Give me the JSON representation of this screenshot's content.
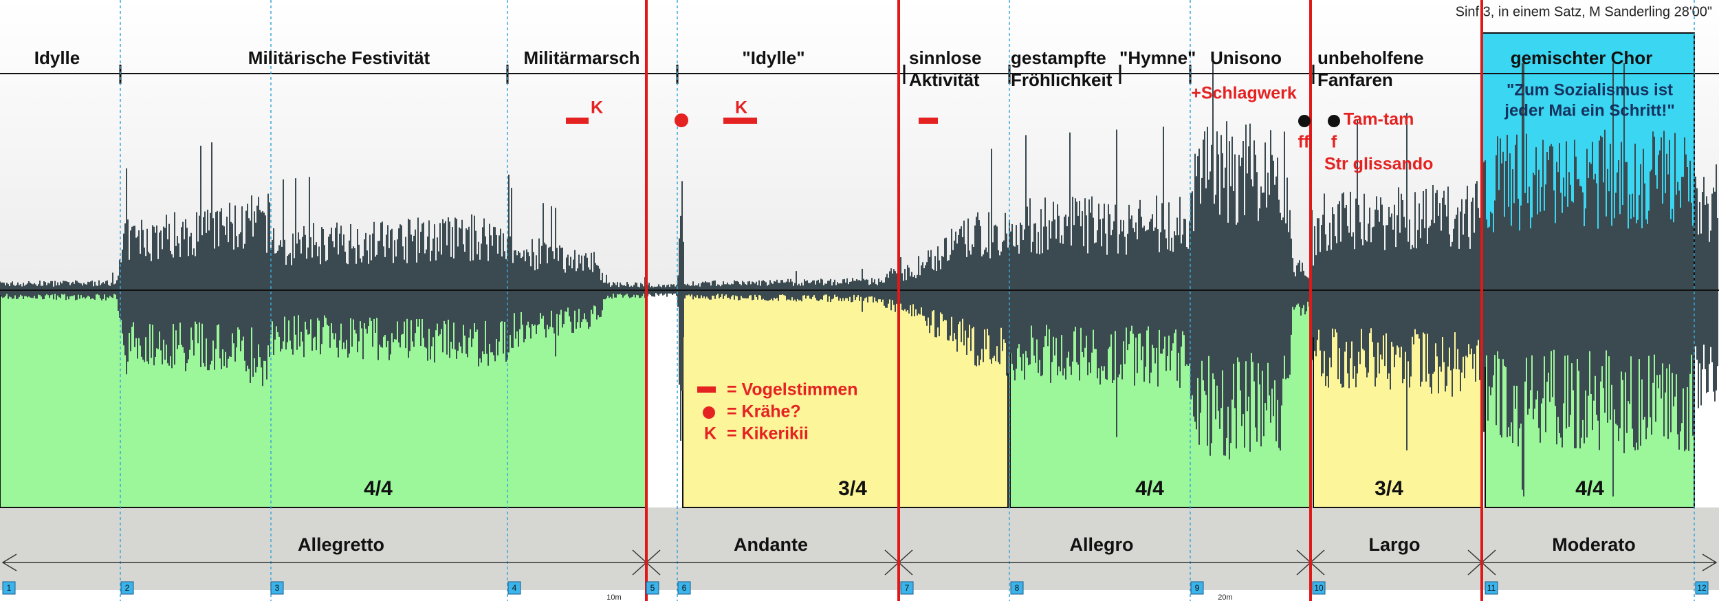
{
  "header": {
    "title": "Sinf 3, in einem Satz, M Sanderling 28'00\""
  },
  "sections": [
    {
      "lines": [
        "Idylle"
      ]
    },
    {
      "lines": [
        "Militärische Festivität"
      ]
    },
    {
      "lines": [
        "Militärmarsch"
      ]
    },
    {
      "lines": [
        "\"Idylle\""
      ]
    },
    {
      "lines": [
        "sinnlose",
        "Aktivität"
      ]
    },
    {
      "lines": [
        "gestampfte",
        "Fröhlichkeit"
      ]
    },
    {
      "lines": [
        "\"Hymne\""
      ]
    },
    {
      "lines": [
        "Unisono"
      ]
    },
    {
      "lines": [
        "unbeholfene",
        "Fanfaren"
      ]
    },
    {
      "lines": [
        "gemischter Chor"
      ]
    }
  ],
  "choir_quote": [
    "\"Zum Sozialismus ist",
    "jeder Mai ein Schritt!\""
  ],
  "annotations": {
    "k1": "K",
    "k2": "K",
    "schlagwerk": "+Schlagwerk",
    "ff": "ff",
    "tamtam": "Tam-tam",
    "f": "f",
    "glissando": "Str glissando"
  },
  "legend": [
    {
      "symbol": "",
      "text": "= Vogelstimmen"
    },
    {
      "symbol": "",
      "text": "= Krähe?"
    },
    {
      "symbol": "K",
      "text": "= Kikerikii"
    }
  ],
  "meters": [
    "4/4",
    "3/4",
    "4/4",
    "3/4",
    "4/4"
  ],
  "tempos": [
    "Allegretto",
    "Andante",
    "Allegro",
    "Largo",
    "Moderato"
  ],
  "markers": [
    "1",
    "2",
    "3",
    "4",
    "5",
    "6",
    "7",
    "8",
    "9",
    "10",
    "11",
    "12"
  ],
  "time_labels": [
    "10m",
    "20m"
  ]
}
